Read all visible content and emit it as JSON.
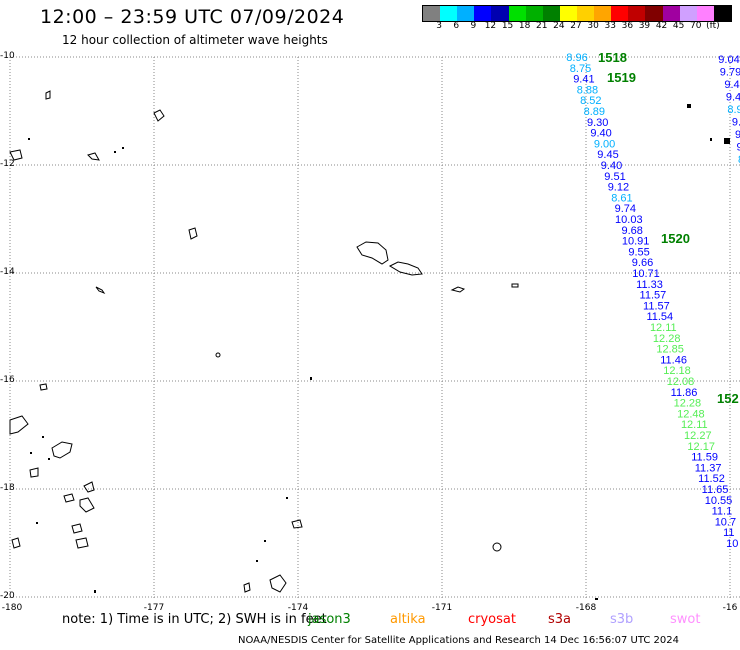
{
  "header": {
    "title": "12:00 – 23:59 UTC 07/09/2024",
    "subtitle": "12 hour collection of altimeter wave heights"
  },
  "legend": {
    "colors": [
      "#808080",
      "#00ffff",
      "#00b0ff",
      "#0000ff",
      "#0000b0",
      "#00e000",
      "#00b000",
      "#008000",
      "#ffff00",
      "#ffd000",
      "#ffa500",
      "#ff0000",
      "#c00000",
      "#800000",
      "#a000a0",
      "#d0a0ff",
      "#ff80ff",
      "#000000"
    ],
    "labels": [
      "3",
      "6",
      "9",
      "12",
      "15",
      "18",
      "21",
      "24",
      "27",
      "30",
      "33",
      "36",
      "39",
      "42",
      "45",
      "70",
      "(ft)"
    ],
    "unit": "(ft)"
  },
  "axes": {
    "lat_labels": [
      "-10",
      "-12",
      "-14",
      "-16",
      "-18",
      "-20"
    ],
    "lon_labels": [
      "-180",
      "-177",
      "-174",
      "-171",
      "-168",
      "-16"
    ]
  },
  "cycles": {
    "c1518": "1518",
    "c1519": "1519",
    "c1520": "1520",
    "c152x": "152"
  },
  "track": [
    {
      "v": "8.96",
      "c": "#00b0ff"
    },
    {
      "v": "8.75",
      "c": "#00b0ff"
    },
    {
      "v": "9.41",
      "c": "#0000ff"
    },
    {
      "v": "8.88",
      "c": "#00b0ff"
    },
    {
      "v": "8.52",
      "c": "#00b0ff"
    },
    {
      "v": "8.89",
      "c": "#00b0ff"
    },
    {
      "v": "9.30",
      "c": "#0000ff"
    },
    {
      "v": "9.40",
      "c": "#0000ff"
    },
    {
      "v": "9.00",
      "c": "#00b0ff"
    },
    {
      "v": "9.45",
      "c": "#0000ff"
    },
    {
      "v": "9.40",
      "c": "#0000ff"
    },
    {
      "v": "9.51",
      "c": "#0000ff"
    },
    {
      "v": "9.12",
      "c": "#0000ff"
    },
    {
      "v": "8.61",
      "c": "#00b0ff"
    },
    {
      "v": "9.74",
      "c": "#0000ff"
    },
    {
      "v": "10.03",
      "c": "#0000ff"
    },
    {
      "v": "9.68",
      "c": "#0000ff"
    },
    {
      "v": "10.91",
      "c": "#0000ff"
    },
    {
      "v": "9.55",
      "c": "#0000ff"
    },
    {
      "v": "9.66",
      "c": "#0000ff"
    },
    {
      "v": "10.71",
      "c": "#0000ff"
    },
    {
      "v": "11.33",
      "c": "#0000ff"
    },
    {
      "v": "11.57",
      "c": "#0000ff"
    },
    {
      "v": "11.57",
      "c": "#0000ff"
    },
    {
      "v": "11.54",
      "c": "#0000ff"
    },
    {
      "v": "12.11",
      "c": "#55ee55"
    },
    {
      "v": "12.28",
      "c": "#55ee55"
    },
    {
      "v": "12.85",
      "c": "#55ee55"
    },
    {
      "v": "11.46",
      "c": "#0000ff"
    },
    {
      "v": "12.18",
      "c": "#55ee55"
    },
    {
      "v": "12.08",
      "c": "#55ee55"
    },
    {
      "v": "11.86",
      "c": "#0000ff"
    },
    {
      "v": "12.28",
      "c": "#55ee55"
    },
    {
      "v": "12.48",
      "c": "#55ee55"
    },
    {
      "v": "12.11",
      "c": "#55ee55"
    },
    {
      "v": "12.27",
      "c": "#55ee55"
    },
    {
      "v": "12.17",
      "c": "#55ee55"
    },
    {
      "v": "11.59",
      "c": "#0000ff"
    },
    {
      "v": "11.37",
      "c": "#0000ff"
    },
    {
      "v": "11.52",
      "c": "#0000ff"
    },
    {
      "v": "11.65",
      "c": "#0000ff"
    },
    {
      "v": "10.55",
      "c": "#0000ff"
    },
    {
      "v": "11.1",
      "c": "#0000ff"
    },
    {
      "v": "10.7",
      "c": "#0000ff"
    },
    {
      "v": "11",
      "c": "#0000ff"
    },
    {
      "v": "10",
      "c": "#0000ff"
    }
  ],
  "edge_track": [
    {
      "v": "9.04",
      "c": "#0000ff"
    },
    {
      "v": "9.79",
      "c": "#0000ff"
    },
    {
      "v": "9.4",
      "c": "#0000ff"
    },
    {
      "v": "9.4",
      "c": "#0000ff"
    },
    {
      "v": "8.9",
      "c": "#00b0ff"
    },
    {
      "v": "9.",
      "c": "#0000ff"
    },
    {
      "v": "9",
      "c": "#0000ff"
    },
    {
      "v": "9",
      "c": "#0000ff"
    },
    {
      "v": "8",
      "c": "#00b0ff"
    },
    {
      "v": "1",
      "c": "#0000ff"
    }
  ],
  "note": {
    "text": "note:  1) Time is in UTC;  2) SWH is in feet",
    "missions": [
      {
        "name": "jason3",
        "color": "#008000"
      },
      {
        "name": "altika",
        "color": "#ff9900"
      },
      {
        "name": "cryosat",
        "color": "#ff0000"
      },
      {
        "name": "s3a",
        "color": "#b00000"
      },
      {
        "name": "s3b",
        "color": "#b0a0ff"
      },
      {
        "name": "swot",
        "color": "#ff90ff"
      }
    ]
  },
  "footer": "NOAA/NESDIS Center for Satellite Applications and Research   14 Dec 16:56:07 UTC 2024"
}
